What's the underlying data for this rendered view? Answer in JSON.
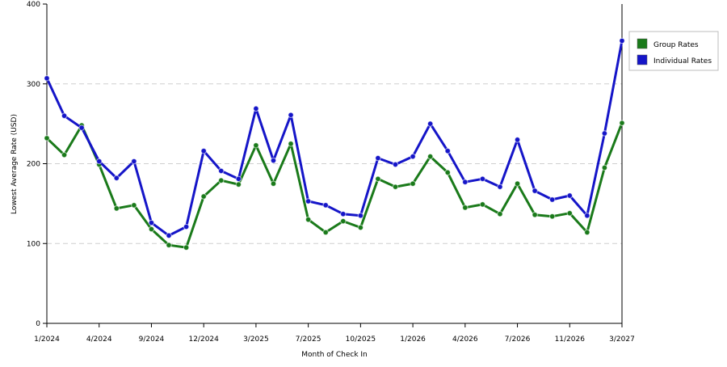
{
  "chart_data": {
    "type": "line",
    "title": "",
    "xlabel": "Month of Check In",
    "ylabel": "Lowest Average Rate (USD)",
    "ylim": [
      0,
      400
    ],
    "yticks": [
      0,
      100,
      200,
      300,
      400
    ],
    "grid": "horizontal dashed",
    "legend_position": "top-right",
    "x_tick_labels": [
      {
        "index": 0,
        "label": "1/2024"
      },
      {
        "index": 3,
        "label": "4/2024"
      },
      {
        "index": 6,
        "label": "9/2024"
      },
      {
        "index": 9,
        "label": "12/2024"
      },
      {
        "index": 12,
        "label": "3/2025"
      },
      {
        "index": 15,
        "label": "7/2025"
      },
      {
        "index": 18,
        "label": "10/2025"
      },
      {
        "index": 21,
        "label": "1/2026"
      },
      {
        "index": 24,
        "label": "4/2026"
      },
      {
        "index": 27,
        "label": "7/2026"
      },
      {
        "index": 30,
        "label": "11/2026"
      },
      {
        "index": 33,
        "label": "3/2027"
      }
    ],
    "series": [
      {
        "name": "Group Rates",
        "color": "#1a7a1a",
        "values": [
          232,
          211,
          248,
          199,
          144,
          148,
          118,
          98,
          95,
          159,
          179,
          174,
          223,
          175,
          225,
          130,
          114,
          128,
          120,
          181,
          171,
          175,
          209,
          189,
          145,
          149,
          137,
          175,
          136,
          134,
          138,
          114,
          195,
          251
        ]
      },
      {
        "name": "Individual Rates",
        "color": "#1515c8",
        "values": [
          307,
          260,
          245,
          203,
          182,
          203,
          126,
          110,
          121,
          216,
          191,
          181,
          269,
          204,
          261,
          153,
          148,
          137,
          135,
          207,
          199,
          209,
          250,
          216,
          177,
          181,
          171,
          230,
          166,
          155,
          160,
          135,
          238,
          354
        ]
      }
    ]
  }
}
